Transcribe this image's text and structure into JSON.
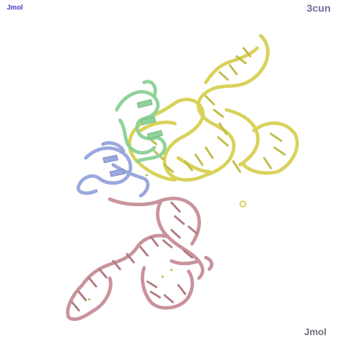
{
  "viewer": {
    "top_left_label": "Jmol",
    "structure_id": "3cun",
    "bottom_right_label": "Jmol"
  },
  "colors": {
    "background": "#ffffff",
    "rna_yellow": "#d8d25a",
    "rna_pink": "#c9939b",
    "protein_green": "#8fd39a",
    "protein_blue": "#9aa8dd",
    "ion_green": "#8fd13a"
  }
}
